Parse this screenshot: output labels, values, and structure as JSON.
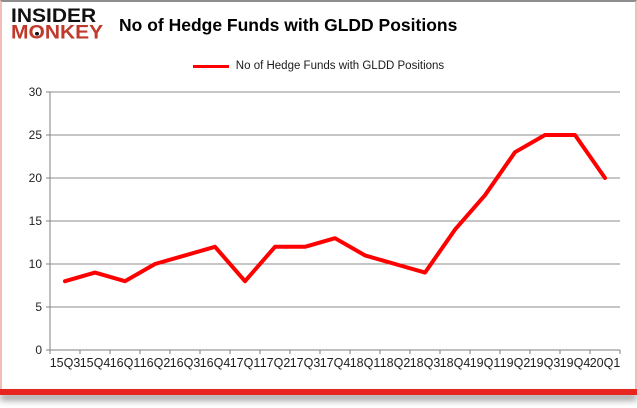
{
  "header": {
    "logo_line1": "INSIDER",
    "logo_line2_pre": "M",
    "logo_line2_o": "O",
    "logo_line2_post": "NKEY",
    "title": "No of Hedge Funds with GLDD Positions"
  },
  "legend": {
    "label": "No of Hedge Funds with GLDD Positions"
  },
  "colors": {
    "series_line": "#ff0000",
    "logo_ink": "#111111",
    "logo_red": "#bf3a2b",
    "bottom_bar": "#e6261f",
    "grid": "#8c8c8c",
    "axis": "#808080",
    "tick_text": "#1f1f1f"
  },
  "chart_data": {
    "type": "line",
    "title": "No of Hedge Funds with GLDD Positions",
    "series": [
      {
        "name": "No of Hedge Funds with GLDD Positions",
        "values": [
          8,
          9,
          8,
          10,
          11,
          12,
          8,
          12,
          12,
          13,
          11,
          10,
          9,
          14,
          18,
          23,
          25,
          25,
          20
        ]
      }
    ],
    "categories": [
      "15Q3",
      "15Q4",
      "16Q1",
      "16Q2",
      "16Q3",
      "16Q4",
      "17Q1",
      "17Q2",
      "17Q3",
      "17Q4",
      "18Q1",
      "18Q2",
      "18Q3",
      "18Q4",
      "19Q1",
      "19Q2",
      "19Q3",
      "19Q4",
      "20Q1"
    ],
    "xlabel": "",
    "ylabel": "",
    "ylim": [
      0,
      30
    ],
    "ytick_step": 5,
    "grid": true,
    "legend_position": "top-center",
    "line_color": "#ff0000"
  }
}
